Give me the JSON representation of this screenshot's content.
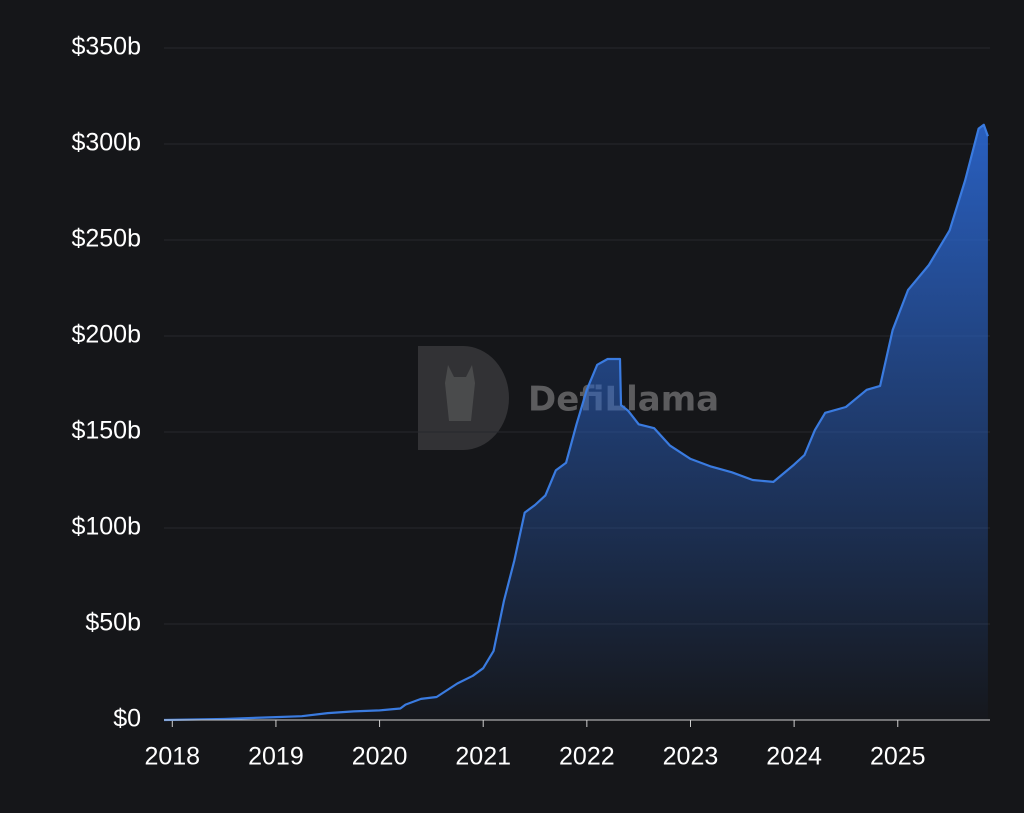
{
  "watermark": "DefiLlama",
  "chart_data": {
    "type": "area",
    "x": [
      2017.92,
      2018.5,
      2019.0,
      2019.25,
      2019.5,
      2019.75,
      2020.0,
      2020.2,
      2020.25,
      2020.4,
      2020.55,
      2020.75,
      2020.9,
      2021.0,
      2021.1,
      2021.2,
      2021.3,
      2021.4,
      2021.5,
      2021.6,
      2021.7,
      2021.8,
      2021.9,
      2022.0,
      2022.1,
      2022.2,
      2022.32,
      2022.33,
      2022.4,
      2022.5,
      2022.65,
      2022.8,
      2023.0,
      2023.2,
      2023.4,
      2023.6,
      2023.8,
      2024.0,
      2024.1,
      2024.2,
      2024.3,
      2024.5,
      2024.7,
      2024.83,
      2024.95,
      2025.1,
      2025.3,
      2025.5,
      2025.65,
      2025.78,
      2025.83,
      2025.87
    ],
    "values": [
      0,
      0.5,
      1.5,
      2,
      3.6,
      4.5,
      5,
      6,
      8,
      11,
      12,
      19,
      23,
      27,
      36,
      62,
      83,
      108,
      112,
      117,
      130,
      134,
      154,
      172,
      185,
      188,
      188,
      164,
      161,
      154,
      152,
      143,
      136,
      132,
      129,
      125,
      124,
      133,
      138,
      151,
      160,
      163,
      172,
      174,
      203,
      224,
      237,
      255,
      281,
      308,
      310,
      304
    ],
    "color": "#3a7be0",
    "xlim": [
      2017.92,
      2025.89
    ],
    "xticks": [
      2018,
      2019,
      2020,
      2021,
      2022,
      2023,
      2024,
      2025
    ],
    "ylim": [
      0,
      350
    ],
    "yticks": [
      {
        "value": 0,
        "label": "$0"
      },
      {
        "value": 50,
        "label": "$50b"
      },
      {
        "value": 100,
        "label": "$100b"
      },
      {
        "value": 150,
        "label": "$150b"
      },
      {
        "value": 200,
        "label": "$200b"
      },
      {
        "value": 250,
        "label": "$250b"
      },
      {
        "value": 300,
        "label": "$300b"
      },
      {
        "value": 350,
        "label": "$350b"
      }
    ],
    "grid": true
  }
}
